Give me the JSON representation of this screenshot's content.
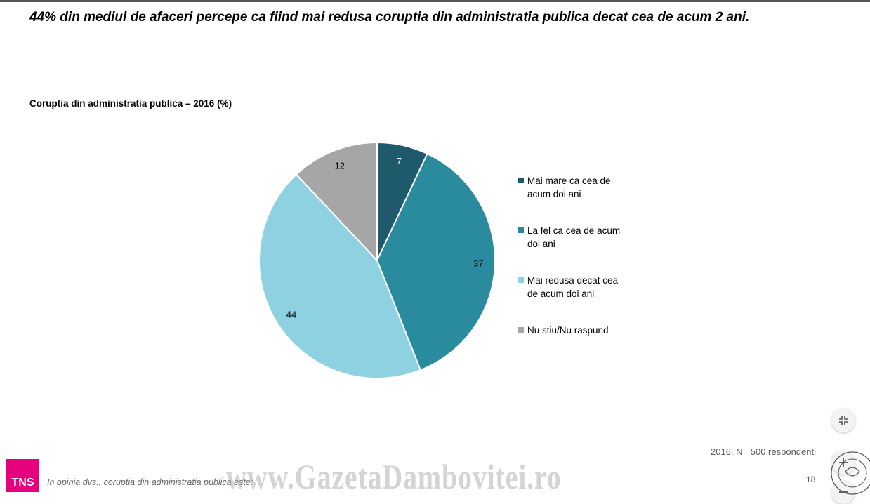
{
  "headline": "44% din mediul de afaceri percepe ca fiind mai redusa coruptia din administratia publica decat cea de acum 2 ani.",
  "chart_data": {
    "type": "pie",
    "title": "Coruptia din administratia publica – 2016 (%)",
    "series": [
      {
        "label": "Mai mare ca cea de acum doi ani",
        "legend_lines": [
          "Mai mare ca cea de",
          "acum doi ani"
        ],
        "value": 7,
        "color": "#1e5a6b"
      },
      {
        "label": "La fel ca cea de acum doi ani",
        "legend_lines": [
          "La fel ca cea de acum",
          "doi ani"
        ],
        "value": 37,
        "color": "#2a8a9e"
      },
      {
        "label": "Mai redusa decat cea de acum doi ani",
        "legend_lines": [
          "Mai redusa decat cea",
          "de acum doi ani"
        ],
        "value": 44,
        "color": "#8ed1e0"
      },
      {
        "label": "Nu stiu/Nu raspund",
        "legend_lines": [
          "Nu stiu/Nu raspund"
        ],
        "value": 12,
        "color": "#a6a6a6"
      }
    ],
    "legend_position": "right"
  },
  "footer": {
    "sample_note": "2016: N= 500 respondenti",
    "question": "In opinia dvs., coruptia din administratia publica este:",
    "page_number": "18",
    "logo_text": "TNS",
    "watermark": "www.GazetaDambovitei.ro"
  },
  "controls": {
    "collapse_icon": "collapse-icon",
    "zoom_in_icon": "zoom-in-icon",
    "zoom_out_icon": "zoom-out-icon"
  }
}
